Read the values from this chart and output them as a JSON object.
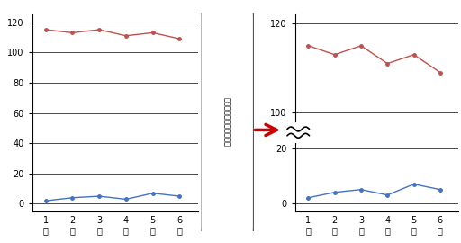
{
  "months": [
    1,
    2,
    3,
    4,
    5,
    6
  ],
  "month_labels": [
    "1\n月",
    "2\n月",
    "3\n月",
    "4\n月",
    "5\n月",
    "6\n月"
  ],
  "red_values": [
    115,
    113,
    115,
    111,
    113,
    109
  ],
  "blue_values": [
    2,
    4,
    5,
    3,
    7,
    5
  ],
  "red_color": "#c0504d",
  "blue_color": "#4472c4",
  "bg_color": "#ffffff",
  "left_yticks": [
    0,
    20,
    40,
    60,
    80,
    100,
    120
  ],
  "right_yticks_top": [
    100,
    120
  ],
  "right_yticks_bottom": [
    0,
    20
  ],
  "tick_fontsize": 7,
  "vertical_text": "とちゅうをしょうりゃく"
}
